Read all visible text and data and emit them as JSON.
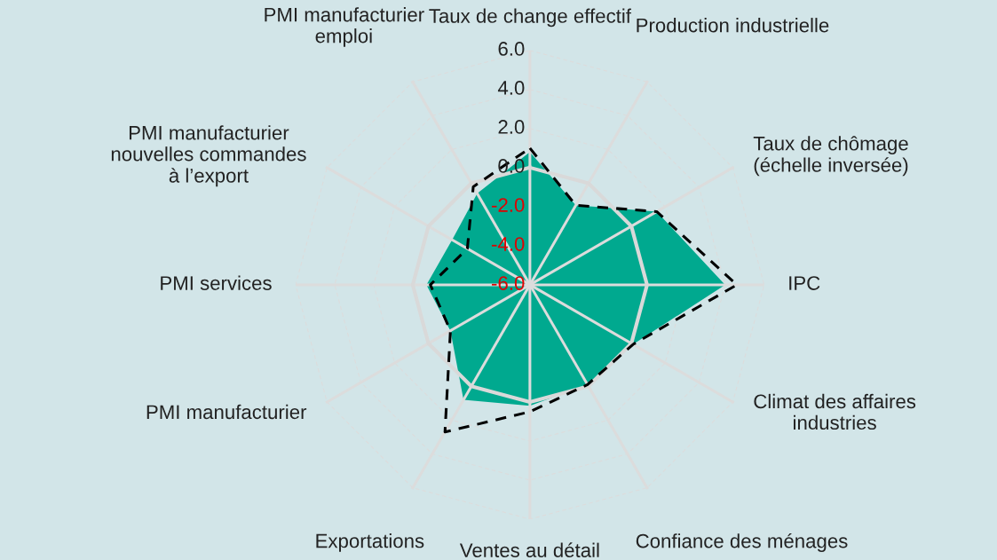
{
  "chart_data": {
    "type": "radar",
    "categories": [
      "Taux de change effectif",
      "Production industrielle",
      "Taux de chômage\n(échelle inversée)",
      "IPC",
      "Climat des affaires\nindustries",
      "Confiance des ménages",
      "Ventes au détail",
      "Exportations",
      "PMI manufacturier",
      "PMI services",
      "PMI manufacturier\nnouvelles commandes\nà l’export",
      "PMI manufacturier\nemploi"
    ],
    "series": [
      {
        "color": "#00a98f",
        "values": [
          0.8,
          -1.3,
          1.5,
          4.0,
          0.1,
          -0.1,
          0.2,
          0.8,
          -1.3,
          -0.7,
          -1.4,
          -0.6
        ]
      },
      {
        "color": "#000000",
        "line_style": "dashed",
        "values": [
          1.0,
          -1.3,
          1.5,
          4.6,
          0.1,
          -0.1,
          0.5,
          2.7,
          -1.3,
          -0.9,
          -2.3,
          -0.2
        ]
      }
    ],
    "ylim": [
      -6,
      6
    ],
    "yticks": [
      {
        "value": -6,
        "label": "-6.0"
      },
      {
        "value": -4,
        "label": "-4.0"
      },
      {
        "value": -2,
        "label": "-2.0"
      },
      {
        "value": 0,
        "label": "0.0"
      },
      {
        "value": 2,
        "label": "2.0"
      },
      {
        "value": 4,
        "label": "4.0"
      },
      {
        "value": 6,
        "label": "6.0"
      }
    ],
    "grid": true
  }
}
